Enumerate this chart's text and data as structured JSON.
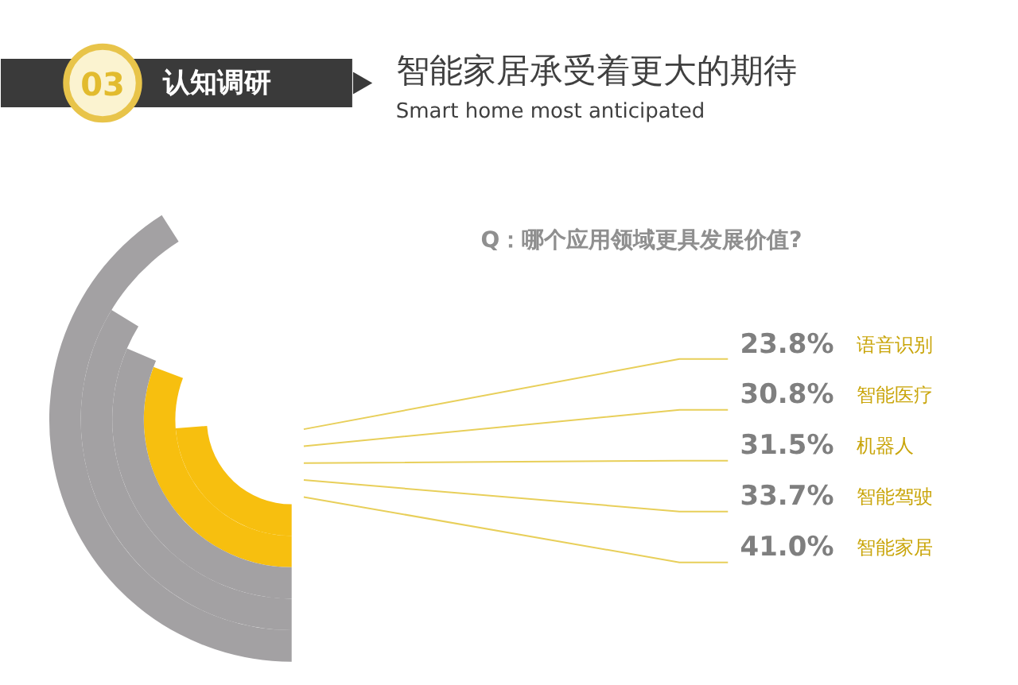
{
  "chart_data": {
    "type": "other",
    "title": "智能家居承受着更大的期待",
    "subtitle": "Smart home most anticipated",
    "annotations": [
      "03",
      "认知调研",
      "Q：哪个应用领域更具发展价值?"
    ],
    "categories": [
      "语音识别",
      "智能医疗",
      "机器人",
      "智能驾驶",
      "智能家居"
    ],
    "values": [
      23.8,
      30.8,
      31.5,
      33.7,
      41.0
    ],
    "value_labels": [
      "23.8%",
      "30.8%",
      "31.5%",
      "33.7%",
      "41.0%"
    ],
    "colors": [
      "#f7bf0f",
      "#f7bf0f",
      "#a3a1a3",
      "#a3a1a3",
      "#a3a1a3"
    ]
  }
}
